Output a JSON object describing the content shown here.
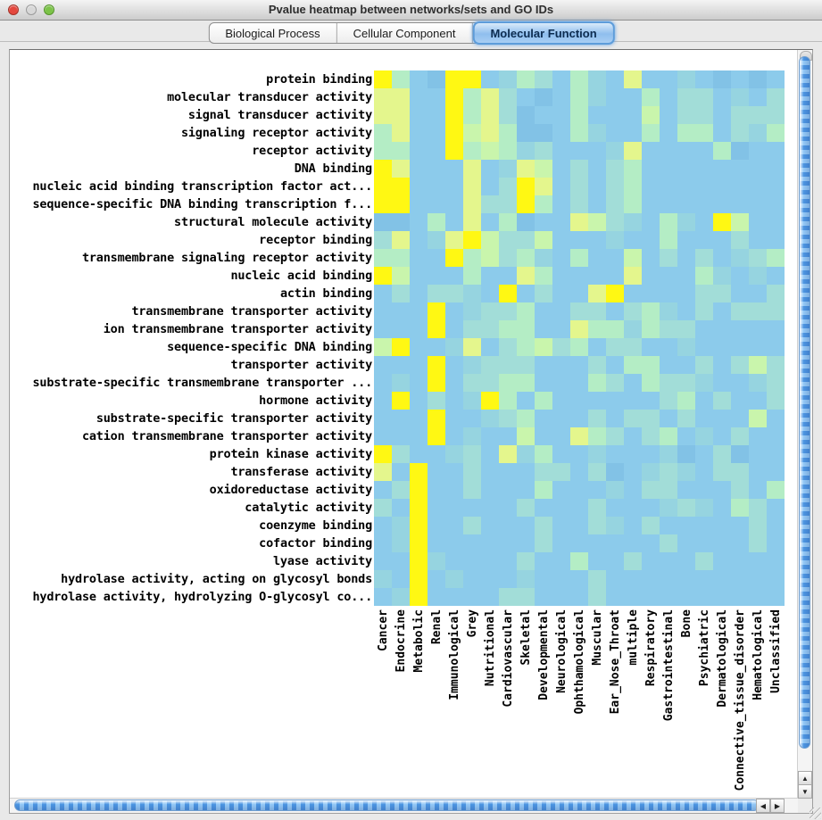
{
  "window": {
    "title": "Pvalue heatmap between networks/sets and GO IDs",
    "traffic_lights": {
      "close": "#e4473d",
      "minimize": "#d8d8d8",
      "zoom": "#7cc349"
    }
  },
  "tabs": [
    {
      "label": "Biological Process",
      "selected": false
    },
    {
      "label": "Cellular Component",
      "selected": false
    },
    {
      "label": "Molecular Function",
      "selected": true
    }
  ],
  "accent": {
    "selected_tab_blue": "#5d9cda",
    "scrollbar_blue": "#4c95e2"
  },
  "scrollbar_icons": {
    "up": "▲",
    "down": "▼",
    "left": "◀",
    "right": "▶"
  },
  "chart_data": {
    "type": "heatmap",
    "title": "Pvalue heatmap between networks/sets and GO IDs",
    "rows": [
      "protein binding",
      "molecular transducer activity",
      "signal transducer activity",
      "signaling receptor activity",
      "receptor activity",
      "DNA binding",
      "nucleic acid binding transcription factor act...",
      "sequence-specific DNA binding transcription f...",
      "structural molecule activity",
      "receptor binding",
      "transmembrane signaling receptor activity",
      "nucleic acid binding",
      "actin binding",
      "transmembrane transporter activity",
      "ion transmembrane transporter activity",
      "sequence-specific DNA binding",
      "transporter activity",
      "substrate-specific transmembrane transporter ...",
      "hormone activity",
      "substrate-specific transporter activity",
      "cation transmembrane transporter activity",
      "protein kinase activity",
      "transferase activity",
      "oxidoreductase activity",
      "catalytic activity",
      "coenzyme binding",
      "cofactor binding",
      "lyase activity",
      "hydrolase activity, acting on glycosyl bonds",
      "hydrolase activity, hydrolyzing O-glycosyl co..."
    ],
    "columns": [
      "Cancer",
      "Endocrine",
      "Metabolic",
      "Renal",
      "Immunological",
      "Grey",
      "Nutritional",
      "Cardiovascular",
      "Skeletal",
      "Developmental",
      "Neurological",
      "Ophthamological",
      "Muscular",
      "Ear_Nose_Throat",
      "multiple",
      "Respiratory",
      "Gastrointestinal",
      "Bone",
      "Psychiatric",
      "Dermatological",
      "Connective_tissue_disorder",
      "Hematological",
      "Unclassified"
    ],
    "palette": [
      "#8CCBEB",
      "#82C2E6",
      "#96D4E0",
      "#A2DDD8",
      "#B4EDC5",
      "#C9F5AC",
      "#E4F68D",
      "#FFF813"
    ],
    "palette_meaning": "index 0 = low significance (blue) ... 7 = high significance (yellow)",
    "grid": [
      [
        7,
        4,
        0,
        1,
        7,
        7,
        0,
        2,
        4,
        3,
        0,
        4,
        2,
        0,
        6,
        0,
        0,
        2,
        0,
        1,
        0,
        1,
        0
      ],
      [
        6,
        6,
        0,
        0,
        7,
        4,
        6,
        3,
        0,
        1,
        0,
        4,
        2,
        0,
        0,
        4,
        0,
        3,
        3,
        0,
        2,
        0,
        3
      ],
      [
        6,
        6,
        0,
        0,
        7,
        4,
        6,
        3,
        1,
        0,
        0,
        4,
        0,
        0,
        0,
        5,
        0,
        3,
        3,
        0,
        3,
        3,
        3
      ],
      [
        4,
        6,
        0,
        0,
        7,
        5,
        6,
        4,
        1,
        1,
        0,
        4,
        2,
        0,
        0,
        4,
        0,
        4,
        4,
        0,
        3,
        2,
        4
      ],
      [
        4,
        4,
        0,
        0,
        7,
        4,
        5,
        4,
        2,
        3,
        0,
        0,
        0,
        2,
        6,
        0,
        0,
        0,
        0,
        4,
        1,
        0,
        0
      ],
      [
        7,
        6,
        0,
        0,
        0,
        6,
        0,
        2,
        6,
        5,
        0,
        3,
        0,
        3,
        4,
        0,
        0,
        0,
        0,
        0,
        0,
        0,
        0
      ],
      [
        7,
        7,
        0,
        0,
        0,
        6,
        0,
        3,
        7,
        6,
        0,
        3,
        0,
        3,
        4,
        0,
        0,
        0,
        0,
        0,
        0,
        0,
        0
      ],
      [
        7,
        7,
        0,
        0,
        0,
        6,
        3,
        3,
        7,
        4,
        0,
        3,
        0,
        3,
        4,
        0,
        0,
        0,
        0,
        0,
        0,
        0,
        0
      ],
      [
        1,
        1,
        0,
        4,
        0,
        6,
        0,
        4,
        1,
        0,
        0,
        6,
        5,
        3,
        2,
        0,
        4,
        2,
        0,
        7,
        5,
        0,
        0
      ],
      [
        3,
        6,
        0,
        2,
        6,
        7,
        5,
        3,
        3,
        5,
        0,
        0,
        0,
        2,
        0,
        0,
        4,
        0,
        0,
        0,
        3,
        0,
        0
      ],
      [
        4,
        4,
        0,
        0,
        7,
        4,
        5,
        3,
        4,
        2,
        0,
        4,
        0,
        0,
        5,
        0,
        3,
        0,
        3,
        0,
        2,
        3,
        4
      ],
      [
        7,
        5,
        0,
        0,
        0,
        4,
        0,
        0,
        6,
        4,
        0,
        0,
        0,
        0,
        6,
        0,
        0,
        0,
        4,
        2,
        0,
        2,
        0
      ],
      [
        0,
        3,
        0,
        3,
        3,
        2,
        0,
        7,
        0,
        3,
        0,
        0,
        6,
        7,
        0,
        0,
        0,
        0,
        3,
        3,
        0,
        0,
        3
      ],
      [
        0,
        0,
        0,
        7,
        0,
        2,
        3,
        3,
        4,
        0,
        0,
        3,
        3,
        0,
        3,
        4,
        2,
        0,
        3,
        0,
        3,
        3,
        3
      ],
      [
        0,
        0,
        0,
        7,
        0,
        3,
        3,
        4,
        4,
        0,
        0,
        6,
        4,
        4,
        2,
        4,
        3,
        3,
        0,
        0,
        0,
        0,
        0
      ],
      [
        5,
        7,
        0,
        0,
        2,
        6,
        0,
        3,
        4,
        5,
        3,
        4,
        0,
        3,
        3,
        0,
        0,
        2,
        0,
        0,
        0,
        0,
        0
      ],
      [
        0,
        0,
        0,
        7,
        0,
        2,
        3,
        3,
        3,
        0,
        0,
        0,
        3,
        0,
        4,
        4,
        0,
        0,
        3,
        0,
        3,
        5,
        3
      ],
      [
        0,
        2,
        0,
        7,
        0,
        3,
        3,
        4,
        4,
        0,
        0,
        0,
        4,
        3,
        0,
        4,
        3,
        3,
        2,
        0,
        0,
        2,
        3
      ],
      [
        0,
        7,
        0,
        3,
        0,
        2,
        7,
        4,
        0,
        4,
        0,
        0,
        0,
        0,
        0,
        0,
        3,
        4,
        0,
        3,
        0,
        0,
        3
      ],
      [
        0,
        0,
        0,
        7,
        0,
        0,
        2,
        3,
        4,
        0,
        0,
        0,
        3,
        0,
        3,
        3,
        0,
        3,
        0,
        0,
        0,
        5,
        0
      ],
      [
        0,
        0,
        0,
        7,
        0,
        2,
        0,
        0,
        5,
        0,
        0,
        6,
        4,
        3,
        0,
        3,
        4,
        0,
        2,
        0,
        3,
        0,
        0
      ],
      [
        7,
        3,
        0,
        0,
        2,
        3,
        0,
        6,
        2,
        4,
        0,
        0,
        2,
        0,
        0,
        0,
        2,
        1,
        0,
        3,
        1,
        0,
        0
      ],
      [
        6,
        0,
        7,
        0,
        0,
        3,
        0,
        0,
        0,
        3,
        3,
        0,
        3,
        1,
        0,
        2,
        3,
        2,
        0,
        3,
        3,
        0,
        0
      ],
      [
        0,
        3,
        7,
        0,
        0,
        3,
        0,
        0,
        0,
        4,
        0,
        0,
        0,
        2,
        0,
        3,
        3,
        0,
        0,
        0,
        3,
        0,
        4
      ],
      [
        3,
        0,
        7,
        0,
        0,
        0,
        0,
        0,
        3,
        0,
        0,
        0,
        3,
        0,
        0,
        0,
        2,
        3,
        2,
        0,
        4,
        3,
        0
      ],
      [
        0,
        2,
        7,
        0,
        0,
        3,
        0,
        0,
        0,
        3,
        0,
        0,
        3,
        2,
        0,
        3,
        0,
        0,
        0,
        0,
        0,
        3,
        0
      ],
      [
        0,
        2,
        7,
        0,
        0,
        0,
        0,
        0,
        0,
        3,
        0,
        0,
        0,
        0,
        0,
        0,
        3,
        0,
        0,
        0,
        0,
        3,
        0
      ],
      [
        0,
        0,
        7,
        2,
        0,
        0,
        0,
        0,
        3,
        0,
        0,
        4,
        0,
        0,
        3,
        0,
        0,
        0,
        3,
        0,
        0,
        0,
        0
      ],
      [
        2,
        0,
        7,
        0,
        2,
        0,
        0,
        0,
        2,
        0,
        0,
        0,
        3,
        0,
        0,
        0,
        0,
        0,
        0,
        0,
        0,
        0,
        0
      ],
      [
        0,
        2,
        7,
        0,
        0,
        0,
        0,
        3,
        3,
        0,
        0,
        0,
        3,
        0,
        0,
        0,
        0,
        0,
        0,
        0,
        0,
        0,
        0
      ]
    ]
  }
}
